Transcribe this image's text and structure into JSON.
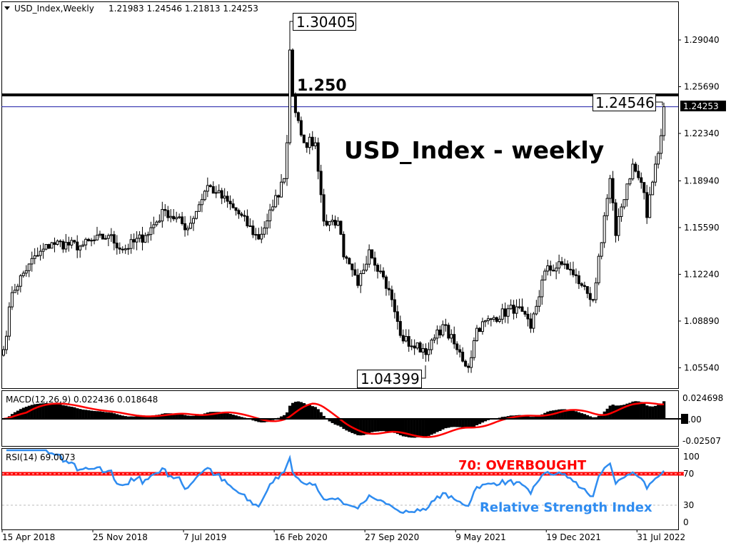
{
  "header": {
    "symbol_label": "USD_Index,Weekly",
    "ohlc": "1.21983 1.24546 1.21813 1.24253"
  },
  "annotations": {
    "title": "USD_Index - weekly",
    "level_label": "1.250",
    "high_box": "1.30405",
    "recent_high_box": "1.24546",
    "low_box": "1.04399",
    "price_tag": "1.24253",
    "overbought_label": "70: OVERBOUGHT",
    "rsi_name": "Relative Strength Index"
  },
  "colors": {
    "level_line": "#000000",
    "current_price_line": "#1a1aa6",
    "macd_signal": "#ff0000",
    "rsi_line": "#2f8cf0",
    "overbought_line": "#ff0000"
  },
  "macd_pane": {
    "label": "MACD(12,26,9) 0.022436 0.018648",
    "ticks": [
      "0.024698",
      "0.00",
      "-0.02507"
    ]
  },
  "rsi_pane": {
    "label": "RSI(14) 69.0073",
    "ticks": [
      "100",
      "70",
      "30",
      "0"
    ]
  },
  "chart_data": {
    "type": "candlestick",
    "timeframe": "weekly",
    "y_ticks": [
      "1.29040",
      "1.25690",
      "1.22340",
      "1.18940",
      "1.15590",
      "1.12240",
      "1.08890",
      "1.05540"
    ],
    "x_ticks": [
      "15 Apr 2018",
      "25 Nov 2018",
      "7 Jul 2019",
      "16 Feb 2020",
      "27 Sep 2020",
      "9 May 2021",
      "19 Dec 2021",
      "31 Jul 2022"
    ],
    "ylim": [
      1.035,
      1.305
    ],
    "horizontal_level": 1.25,
    "current_price": 1.24253,
    "approx_close_path": [
      [
        "2018-04-15",
        1.0684
      ],
      [
        "2018-05-06",
        1.1093
      ],
      [
        "2018-06-17",
        1.1298
      ],
      [
        "2018-08-12",
        1.1451
      ],
      [
        "2018-10-21",
        1.1426
      ],
      [
        "2018-12-30",
        1.1502
      ],
      [
        "2019-02-03",
        1.14
      ],
      [
        "2019-03-31",
        1.1502
      ],
      [
        "2019-05-19",
        1.1682
      ],
      [
        "2019-07-14",
        1.1554
      ],
      [
        "2019-09-01",
        1.1861
      ],
      [
        "2019-09-22",
        1.181
      ],
      [
        "2019-11-10",
        1.1682
      ],
      [
        "2020-01-05",
        1.1477
      ],
      [
        "2020-02-09",
        1.1708
      ],
      [
        "2020-03-08",
        1.191
      ],
      [
        "2020-03-15",
        1.2167
      ],
      [
        "2020-03-22",
        1.2832
      ],
      [
        "2020-03-29",
        1.25
      ],
      [
        "2020-04-26",
        1.2167
      ],
      [
        "2020-05-24",
        1.2167
      ],
      [
        "2020-05-31",
        1.1963
      ],
      [
        "2020-06-14",
        1.1605
      ],
      [
        "2020-07-19",
        1.1605
      ],
      [
        "2020-08-02",
        1.1349
      ],
      [
        "2020-09-06",
        1.1144
      ],
      [
        "2020-10-04",
        1.14
      ],
      [
        "2020-11-01",
        1.1247
      ],
      [
        "2020-11-29",
        1.1042
      ],
      [
        "2020-12-20",
        1.0786
      ],
      [
        "2021-01-17",
        1.071
      ],
      [
        "2021-02-28",
        1.0684
      ],
      [
        "2021-04-04",
        1.0863
      ],
      [
        "2021-05-09",
        1.0684
      ],
      [
        "2021-06-06",
        1.0556
      ],
      [
        "2021-06-27",
        1.0837
      ],
      [
        "2021-08-08",
        1.0914
      ],
      [
        "2021-10-03",
        1.0991
      ],
      [
        "2021-11-07",
        1.0837
      ],
      [
        "2021-12-12",
        1.1247
      ],
      [
        "2022-01-30",
        1.1298
      ],
      [
        "2022-02-20",
        1.1221
      ],
      [
        "2022-03-13",
        1.1144
      ],
      [
        "2022-04-10",
        1.1042
      ],
      [
        "2022-05-01",
        1.1451
      ],
      [
        "2022-05-22",
        1.1911
      ],
      [
        "2022-06-05",
        1.1502
      ],
      [
        "2022-06-19",
        1.1707
      ],
      [
        "2022-07-17",
        1.2014
      ],
      [
        "2022-08-14",
        1.181
      ],
      [
        "2022-08-21",
        1.1631
      ],
      [
        "2022-09-11",
        1.2014
      ],
      [
        "2022-09-25",
        1.2218
      ],
      [
        "2022-10-02",
        1.24253
      ]
    ],
    "annotated_values": {
      "high": 1.30405,
      "recent_high": 1.24546,
      "low": 1.04399
    },
    "indicators": {
      "macd": {
        "params": [
          12,
          26,
          9
        ],
        "main": 0.022436,
        "signal": 0.018648,
        "ylim": [
          -0.032,
          0.032
        ]
      },
      "rsi": {
        "period": 14,
        "value": 69.0073,
        "levels": [
          70,
          30
        ],
        "ylim": [
          0,
          100
        ]
      }
    }
  }
}
